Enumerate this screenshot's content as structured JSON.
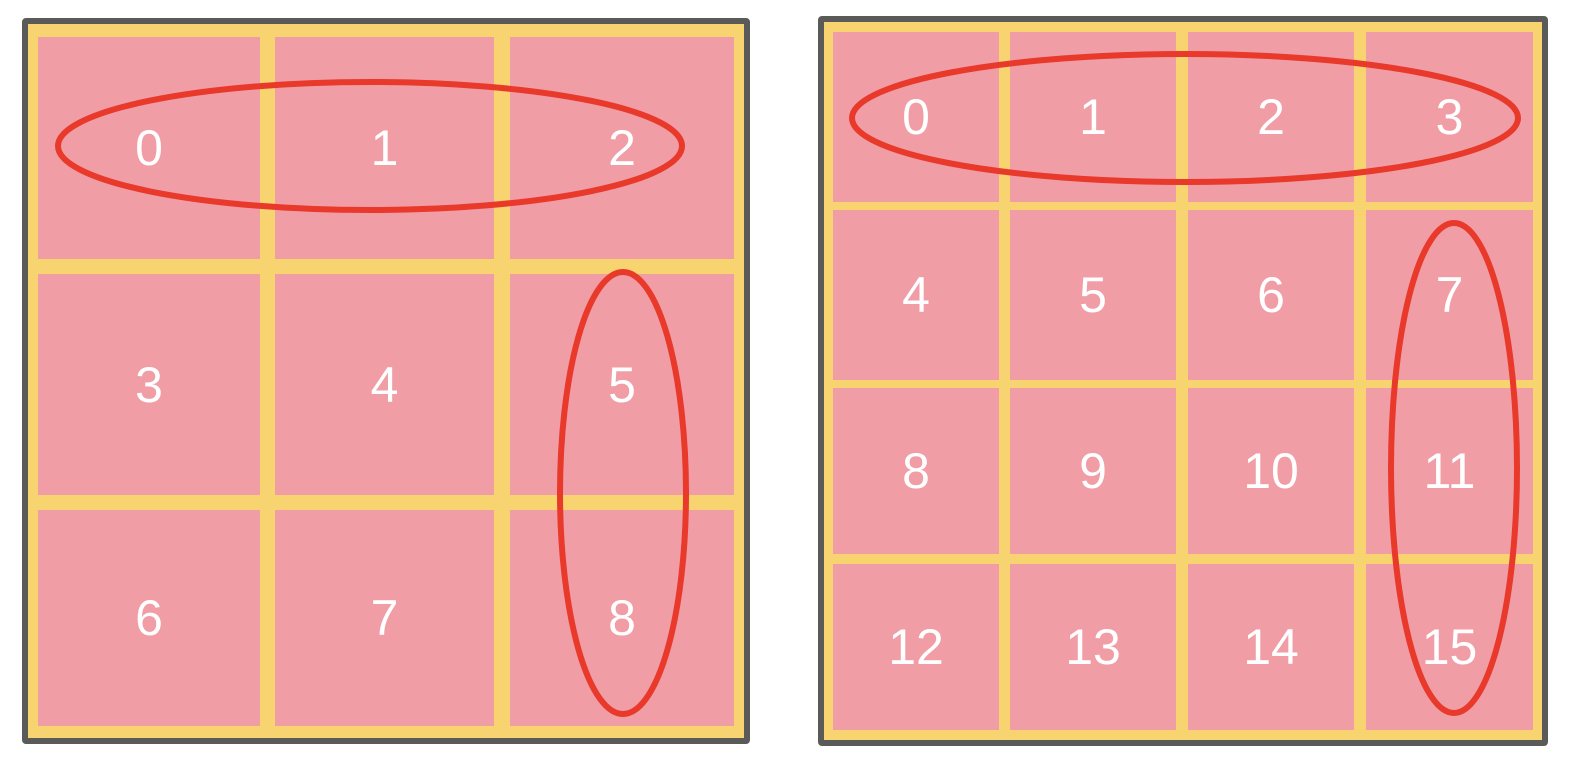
{
  "grids": [
    {
      "id": "grid-3",
      "size": 3,
      "cells": [
        "0",
        "1",
        "2",
        "3",
        "4",
        "5",
        "6",
        "7",
        "8"
      ],
      "circled": [
        {
          "orientation": "row",
          "cells": [
            "0",
            "1",
            "2"
          ]
        },
        {
          "orientation": "column",
          "cells": [
            "5",
            "8"
          ]
        }
      ]
    },
    {
      "id": "grid-4",
      "size": 4,
      "cells": [
        "0",
        "1",
        "2",
        "3",
        "4",
        "5",
        "6",
        "7",
        "8",
        "9",
        "10",
        "11",
        "12",
        "13",
        "14",
        "15"
      ],
      "circled": [
        {
          "orientation": "row",
          "cells": [
            "0",
            "1",
            "2",
            "3"
          ]
        },
        {
          "orientation": "column",
          "cells": [
            "7",
            "11",
            "15"
          ]
        }
      ]
    }
  ],
  "colors": {
    "cell_fill": "#f09da6",
    "grid_line": "#f8d471",
    "outer_border": "#5a5a58",
    "highlight_ring": "#e8392b",
    "label": "#ffffff"
  }
}
